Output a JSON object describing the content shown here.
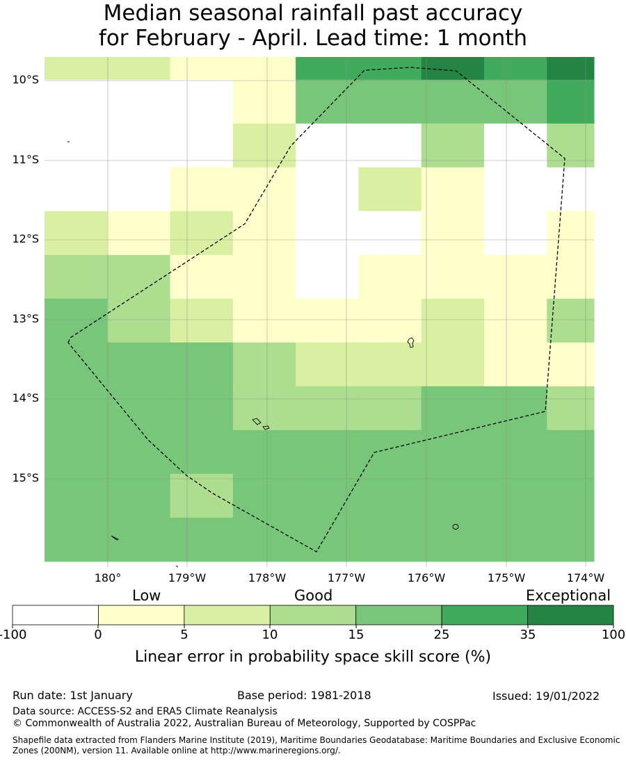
{
  "title": {
    "line1": "Median seasonal rainfall past accuracy",
    "line2": "for February - April. Lead time: 1 month"
  },
  "map": {
    "y_labels": [
      "10°S",
      "11°S",
      "12°S",
      "13°S",
      "14°S",
      "15°S"
    ],
    "x_labels": [
      "180°",
      "179°W",
      "178°W",
      "177°W",
      "176°W",
      "175°W",
      "174°W"
    ],
    "grid_category_rows": [
      [
        2,
        2,
        1,
        1,
        5,
        5,
        6,
        5,
        6
      ],
      [
        0,
        0,
        0,
        1,
        4,
        4,
        4,
        4,
        5
      ],
      [
        0,
        0,
        0,
        2,
        0,
        0,
        3,
        0,
        3
      ],
      [
        0,
        0,
        1,
        1,
        0,
        2,
        1,
        0,
        0
      ],
      [
        2,
        1,
        2,
        1,
        0,
        0,
        1,
        0,
        1
      ],
      [
        3,
        3,
        1,
        1,
        0,
        1,
        1,
        1,
        1
      ],
      [
        4,
        3,
        2,
        1,
        1,
        1,
        2,
        1,
        3
      ],
      [
        4,
        4,
        4,
        3,
        2,
        2,
        2,
        1,
        1
      ],
      [
        4,
        4,
        4,
        3,
        3,
        3,
        4,
        4,
        3
      ],
      [
        4,
        4,
        4,
        4,
        4,
        4,
        4,
        4,
        4
      ],
      [
        4,
        4,
        3,
        4,
        4,
        4,
        4,
        4,
        4
      ],
      [
        4,
        4,
        4,
        4,
        4,
        4,
        4,
        4,
        4
      ]
    ]
  },
  "colorbar": {
    "categories": [
      "Low",
      "Good",
      "Exceptional"
    ],
    "ticks": [
      "-100",
      "0",
      "5",
      "10",
      "15",
      "25",
      "35",
      "100"
    ],
    "colors": [
      "#ffffff",
      "#ffffcc",
      "#d9f0a3",
      "#addd8e",
      "#78c679",
      "#41ab5d",
      "#238443"
    ],
    "label": "Linear error in probability space skill score (%)"
  },
  "footer": {
    "run_date": "Run date: 1st January",
    "base_period": "Base period: 1981-2018",
    "issued": "Issued: 19/01/2022",
    "data_source": "Data source: ACCESS-S2 and ERA5 Climate Reanalysis",
    "copyright": "© Commonwealth of Australia 2022, Australian Bureau of Meteorology, Supported by COSPPac",
    "shapefile_line1": "Shapefile data extracted from Flanders Marine Institute (2019), Maritime Boundaries Geodatabase: Maritime Boundaries and Exclusive Economic",
    "shapefile_line2": "Zones (200NM), version 11. Available online at http://www.marineregions.org/."
  }
}
